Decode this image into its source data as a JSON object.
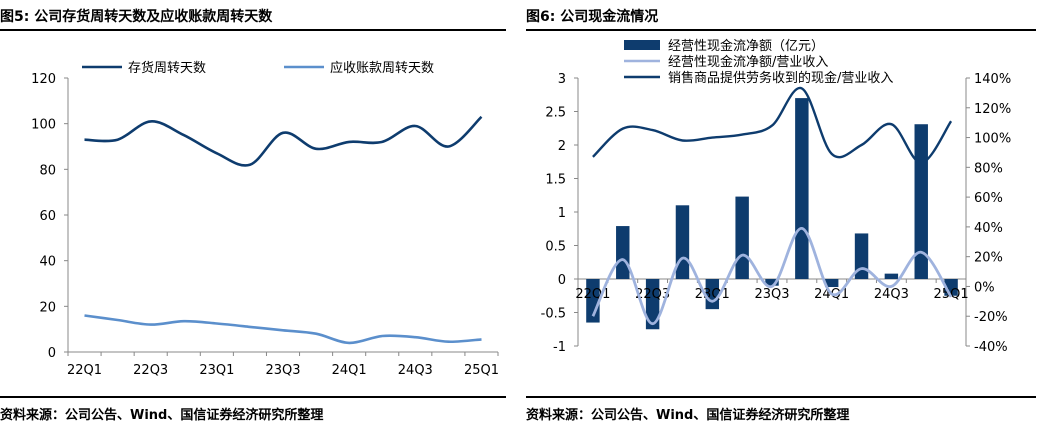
{
  "left": {
    "title": "图5: 公司存货周转天数及应收账款周转天数",
    "source": "资料来源：公司公告、Wind、国信证券经济研究所整理"
  },
  "right": {
    "title": "图6: 公司现金流情况",
    "source": "资料来源：公司公告、Wind、国信证券经济研究所整理"
  },
  "chart_data": [
    {
      "type": "line",
      "title": "",
      "xlabel": "",
      "ylabel": "",
      "x": [
        "22Q1",
        "22Q2",
        "22Q3",
        "22Q4",
        "23Q1",
        "23Q2",
        "23Q3",
        "23Q4",
        "24Q1",
        "24Q2",
        "24Q3",
        "24Q4",
        "25Q1"
      ],
      "x_tick_labels": [
        "22Q1",
        "22Q3",
        "23Q1",
        "23Q3",
        "24Q1",
        "24Q3",
        "25Q1"
      ],
      "y_tick_labels": [
        "0",
        "20",
        "40",
        "60",
        "80",
        "100",
        "120"
      ],
      "ylim": [
        0,
        120
      ],
      "grid": false,
      "legend_position": "top",
      "series": [
        {
          "name": "存货周转天数",
          "color": "#0e3c6e",
          "values": [
            93,
            93,
            101,
            95,
            87,
            82,
            96,
            89,
            92,
            92,
            99,
            90,
            103
          ]
        },
        {
          "name": "应收账款周转天数",
          "color": "#5b8fcc",
          "values": [
            16,
            14,
            12,
            13.5,
            12.5,
            11,
            9.5,
            8,
            4,
            7,
            6.5,
            4.5,
            5.5
          ]
        }
      ]
    },
    {
      "type": "bar",
      "title": "",
      "xlabel": "",
      "ylabel": "",
      "x": [
        "22Q1",
        "22Q2",
        "22Q3",
        "22Q4",
        "23Q1",
        "23Q2",
        "23Q3",
        "23Q4",
        "24Q1",
        "24Q2",
        "24Q3",
        "24Q4",
        "25Q1"
      ],
      "x_tick_labels": [
        "22Q1",
        "22Q3",
        "23Q1",
        "23Q3",
        "24Q1",
        "24Q3",
        "25Q1"
      ],
      "y_tick_labels": [
        "-1",
        "-0.5",
        "0",
        "0.5",
        "1",
        "1.5",
        "2",
        "2.5",
        "3"
      ],
      "y2_tick_labels": [
        "-40%",
        "-20%",
        "0%",
        "20%",
        "40%",
        "60%",
        "80%",
        "100%",
        "120%",
        "140%"
      ],
      "ylim": [
        -1,
        3
      ],
      "y2lim": [
        -0.4,
        1.4
      ],
      "grid": false,
      "legend_position": "top",
      "series": [
        {
          "name": "经营性现金流净额（亿元）",
          "kind": "bar",
          "axis": "left",
          "color": "#0e3c6e",
          "values": [
            -0.65,
            0.79,
            -0.75,
            1.1,
            -0.45,
            1.23,
            -0.1,
            2.7,
            -0.12,
            0.68,
            0.08,
            2.31,
            -0.25
          ]
        },
        {
          "name": "经营性现金流净额/营业收入",
          "kind": "line",
          "axis": "right",
          "color": "#9fb3de",
          "values": [
            -0.2,
            0.18,
            -0.25,
            0.19,
            -0.1,
            0.21,
            0.0,
            0.39,
            -0.05,
            0.12,
            0.0,
            0.23,
            -0.07
          ]
        },
        {
          "name": "销售商品提供劳务收到的现金/营业收入",
          "kind": "line",
          "axis": "right",
          "color": "#0e3c6e",
          "values": [
            0.87,
            1.06,
            1.05,
            0.98,
            1.0,
            1.02,
            1.08,
            1.33,
            0.89,
            0.95,
            1.09,
            0.83,
            1.11
          ]
        }
      ]
    }
  ]
}
